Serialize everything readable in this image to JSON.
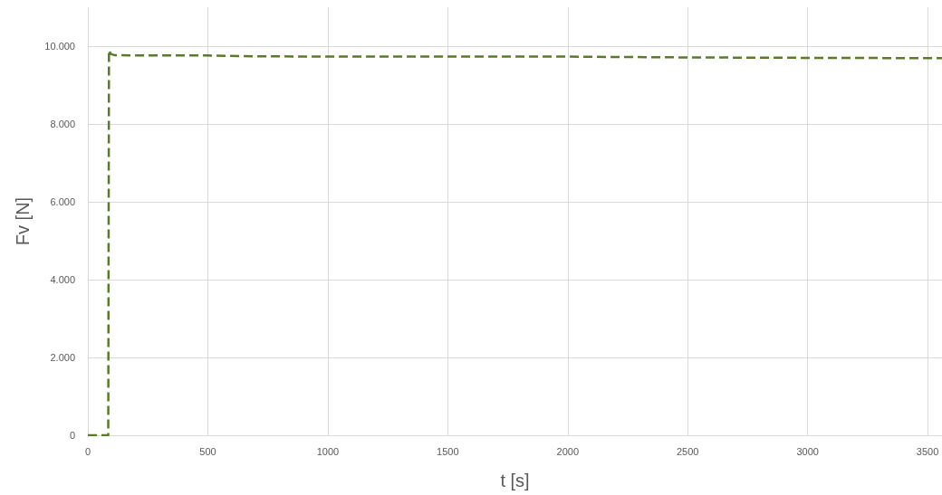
{
  "chart_data": {
    "type": "line",
    "xlabel": "t [s]",
    "ylabel": "Fv [N]",
    "series": [
      {
        "color": "#5a7a2a",
        "x": [
          0,
          85,
          88,
          95,
          110,
          200,
          500,
          700,
          1000,
          1500,
          2000,
          2500,
          3000,
          3560
        ],
        "values": [
          0,
          0,
          9900,
          9800,
          9770,
          9760,
          9760,
          9740,
          9730,
          9730,
          9730,
          9710,
          9700,
          9690
        ]
      }
    ],
    "xlim": [
      0,
      3560
    ],
    "xticks": [
      0,
      500,
      1000,
      1500,
      2000,
      2500,
      3000,
      3500
    ],
    "ylim": [
      0,
      11000
    ],
    "yticks": [
      0,
      {
        "value": 2000,
        "label": "2.000"
      },
      {
        "value": 4000,
        "label": "4.000"
      },
      {
        "value": 6000,
        "label": "6.000"
      },
      {
        "value": 8000,
        "label": "8.000"
      },
      {
        "value": 10000,
        "label": "10.000"
      }
    ],
    "grid": true,
    "line_style": "dashed",
    "marker": "none"
  }
}
